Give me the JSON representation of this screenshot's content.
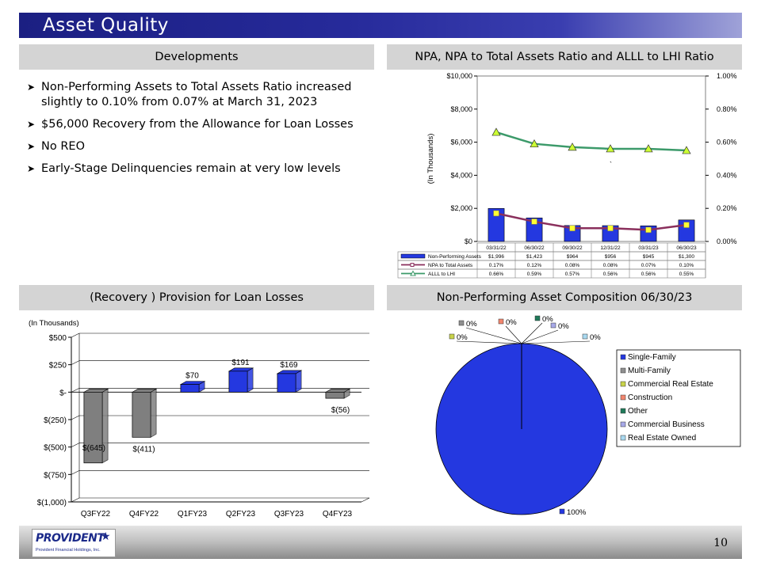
{
  "page_title": "Asset Quality",
  "page_number": "10",
  "logo": {
    "name": "PROVIDENT",
    "subtitle": "Provident Financial Holdings, Inc."
  },
  "sections": {
    "developments": "Developments",
    "npa_chart": "NPA, NPA to Total Assets Ratio and ALLL to LHI Ratio",
    "provision_chart": "(Recovery ) Provision for Loan Losses",
    "composition_chart": "Non-Performing Asset Composition 06/30/23"
  },
  "bullets": [
    "Non-Performing Assets to Total Assets Ratio increased slightly to 0.10% from 0.07% at March 31, 2023",
    "$56,000 Recovery from the Allowance for Loan Losses",
    "No REO",
    "Early-Stage Delinquencies remain at very low levels"
  ],
  "chart_data": [
    {
      "type": "bar",
      "categories": [
        "03/31/22",
        "06/30/22",
        "09/30/22",
        "12/31/22",
        "03/31/23",
        "06/30/23"
      ],
      "ylabel": "(In Thousands)",
      "ylim": [
        0,
        10000
      ],
      "y_ticks": [
        "$0",
        "$2,000",
        "$4,000",
        "$6,000",
        "$8,000",
        "$10,000"
      ],
      "y2lim": [
        0,
        1.0
      ],
      "y2_ticks": [
        "0.00%",
        "0.20%",
        "0.40%",
        "0.60%",
        "0.80%",
        "1.00%"
      ],
      "series": [
        {
          "name": "Non-Performing Assets",
          "kind": "bar",
          "color": "#2438e0",
          "values": [
            1996,
            1423,
            964,
            956,
            945,
            1300
          ],
          "labels": [
            "$1,996",
            "$1,423",
            "$964",
            "$956",
            "$945",
            "$1,300"
          ]
        },
        {
          "name": "NPA to Total Assets",
          "kind": "line",
          "axis": "secondary",
          "color": "#8a2f5c",
          "marker": "square",
          "marker_color": "#ffff33",
          "values": [
            0.17,
            0.12,
            0.08,
            0.08,
            0.07,
            0.1
          ],
          "labels": [
            "0.17%",
            "0.12%",
            "0.08%",
            "0.08%",
            "0.07%",
            "0.10%"
          ]
        },
        {
          "name": "ALLL to LHI",
          "kind": "line",
          "axis": "secondary",
          "color": "#3c9a6a",
          "marker": "triangle",
          "marker_color": "#ccff33",
          "values": [
            0.66,
            0.59,
            0.57,
            0.56,
            0.56,
            0.55
          ],
          "labels": [
            "0.66%",
            "0.59%",
            "0.57%",
            "0.56%",
            "0.56%",
            "0.55%"
          ]
        }
      ],
      "annotation": "`",
      "grid": false,
      "legend": "data-table"
    },
    {
      "type": "bar",
      "categories": [
        "Q3FY22",
        "Q4FY22",
        "Q1FY23",
        "Q2FY23",
        "Q3FY23",
        "Q4FY23"
      ],
      "ylabel": "(In Thousands)",
      "ylim": [
        -1000,
        500
      ],
      "y_ticks": [
        "$(1,000)",
        "$(750)",
        "$(500)",
        "$(250)",
        "$-",
        "$250",
        "$500"
      ],
      "values": [
        -645,
        -411,
        70,
        191,
        169,
        -56
      ],
      "labels": [
        "$(645)",
        "$(411)",
        "$70",
        "$191",
        "$169",
        "$(56)"
      ],
      "colors": {
        "negative": "#7f7f7f",
        "positive": "#2438e0"
      },
      "grid": true
    },
    {
      "type": "pie",
      "categories": [
        "Single-Family",
        "Multi-Family",
        "Commercial Real Estate",
        "Construction",
        "Other",
        "Commercial Business",
        "Real Estate Owned"
      ],
      "values": [
        100,
        0,
        0,
        0,
        0,
        0,
        0
      ],
      "labels": [
        "100%",
        "0%",
        "0%",
        "0%",
        "0%",
        "0%",
        "0%"
      ],
      "colors": [
        "#2438e0",
        "#8f8f8f",
        "#c8d34a",
        "#f2866e",
        "#1f7a5a",
        "#a7a9e8",
        "#a9d9f0"
      ],
      "legend": "right"
    }
  ]
}
